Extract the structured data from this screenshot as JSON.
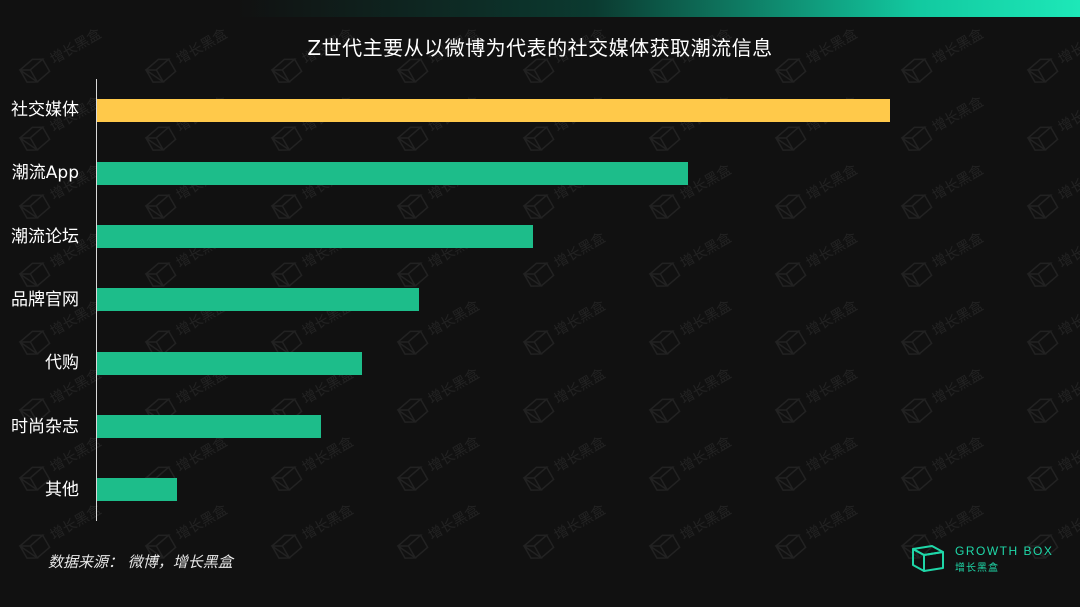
{
  "title": "Z世代主要从以微博为代表的社交媒体获取潮流信息",
  "source": "数据来源：  微博，增长黑盒",
  "logo": {
    "en": "GROWTH BOX",
    "cn": "增长黑盒"
  },
  "watermark_text": "增长黑盒",
  "colors": {
    "highlight": "#FFC94A",
    "bar": "#1DBD8A",
    "accent": "#1FD7A8",
    "background": "#111111"
  },
  "chart_data": {
    "type": "bar",
    "orientation": "horizontal",
    "categories": [
      "社交媒体",
      "潮流App",
      "潮流论坛",
      "品牌官网",
      "代购",
      "时尚杂志",
      "其他"
    ],
    "values": [
      100,
      74.5,
      55,
      40.6,
      33.4,
      28.3,
      10.1
    ],
    "highlight_index": 0,
    "title": "Z世代主要从以微博为代表的社交媒体获取潮流信息",
    "xlabel": "",
    "ylabel": "",
    "xlim": [
      0,
      100
    ],
    "grid": false,
    "legend": "none"
  }
}
